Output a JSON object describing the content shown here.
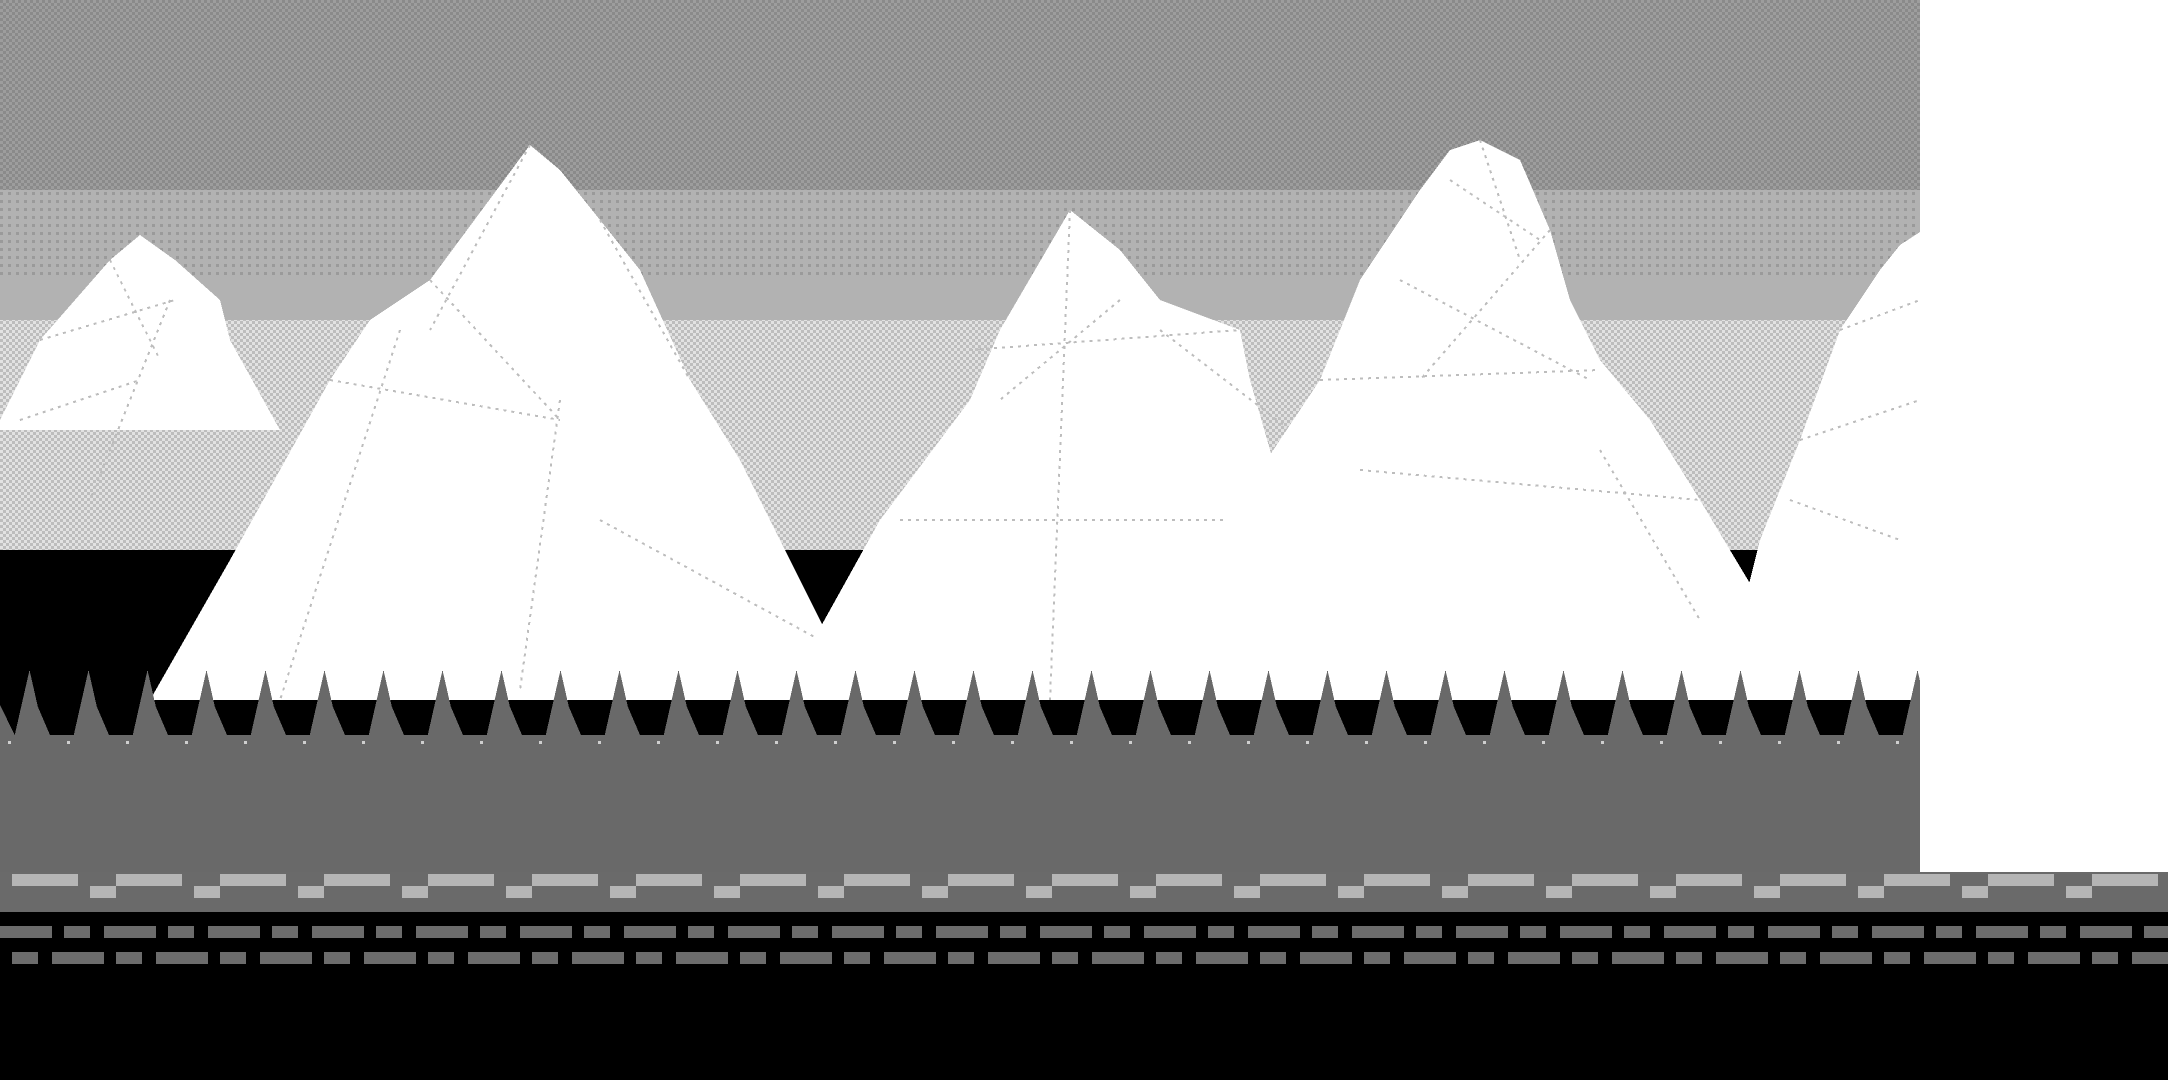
{
  "scene": {
    "type": "side-scrolling-level",
    "palette": {
      "sky": "#b2b2b2",
      "sky_dither_dark": "#8c8c8c",
      "sky_dither_light": "#d7d7d7",
      "snow": "#ffffff",
      "ridge_line": "#bdbdbd",
      "forest": "#696969",
      "track_light": "#b5b5b5",
      "track_base": "#6a6a6a",
      "dash": "#6c6c6c",
      "ground": "#000000",
      "blank_area": "#ffffff"
    },
    "layers": [
      {
        "name": "sky",
        "pattern": "dithered-gradient"
      },
      {
        "name": "snowy-mountain-range",
        "peak_count": 6
      },
      {
        "name": "pine-forest-silhouette",
        "pattern": "zigzag"
      },
      {
        "name": "track-border",
        "pattern": "checkered-stripe"
      },
      {
        "name": "road",
        "pattern": "dashed-lines"
      }
    ],
    "unrendered_region": "right-edge-background-not-loaded"
  }
}
